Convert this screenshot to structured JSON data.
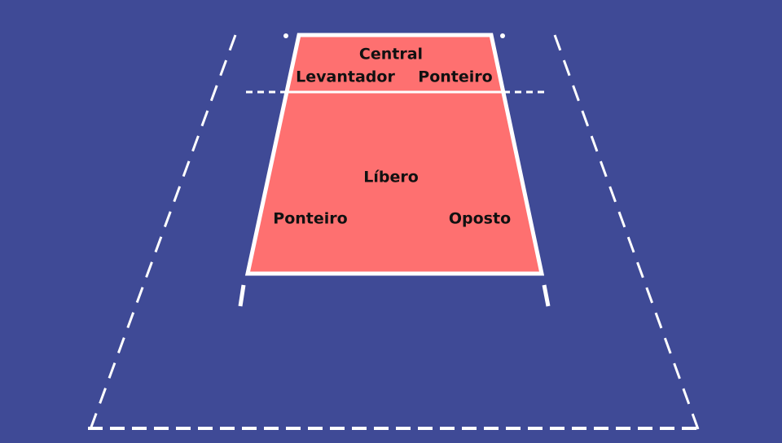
{
  "colors": {
    "background": "#3f4a96",
    "court": "#fe7070",
    "lines": "#ffffff",
    "label_text": "#111111"
  },
  "positions": {
    "central": "Central",
    "levantador": "Levantador",
    "ponteiro_front": "Ponteiro",
    "libero": "Líbero",
    "ponteiro_back": "Ponteiro",
    "oposto": "Oposto"
  }
}
